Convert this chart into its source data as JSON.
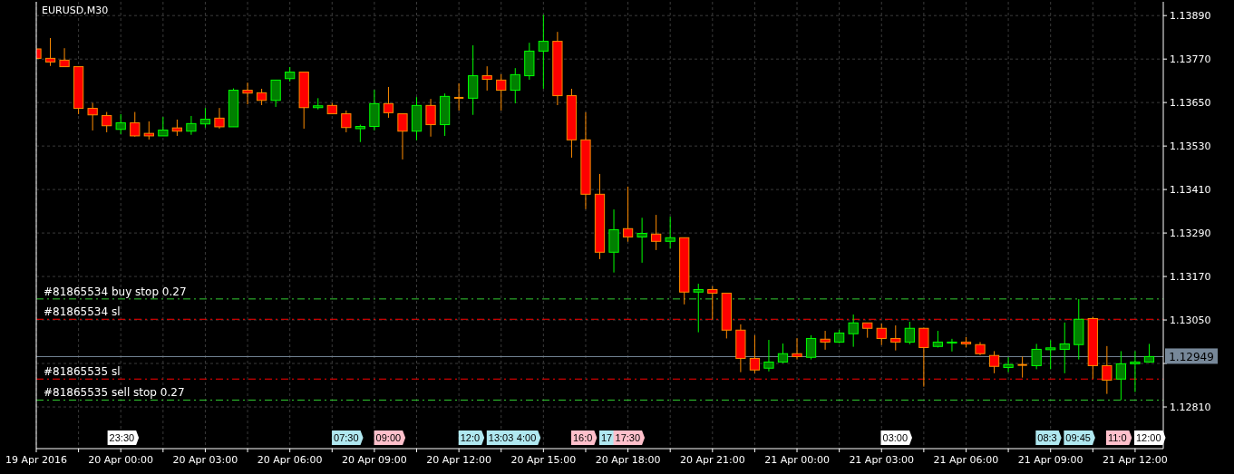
{
  "chart_data": {
    "type": "candlestick",
    "title": "EURUSD,M30",
    "x": [
      "2016-04-19T21:00",
      "2016-04-19T21:30",
      "2016-04-19T22:00",
      "2016-04-19T22:30",
      "2016-04-19T23:00",
      "2016-04-19T23:30",
      "2016-04-20T00:00",
      "2016-04-20T00:30",
      "2016-04-20T01:00",
      "2016-04-20T01:30",
      "2016-04-20T02:00",
      "2016-04-20T02:30",
      "2016-04-20T03:00",
      "2016-04-20T03:30",
      "2016-04-20T04:00",
      "2016-04-20T04:30",
      "2016-04-20T05:00",
      "2016-04-20T05:30",
      "2016-04-20T06:00",
      "2016-04-20T06:30",
      "2016-04-20T07:00",
      "2016-04-20T07:30",
      "2016-04-20T08:00",
      "2016-04-20T08:30",
      "2016-04-20T09:00",
      "2016-04-20T09:30",
      "2016-04-20T10:00",
      "2016-04-20T10:30",
      "2016-04-20T11:00",
      "2016-04-20T11:30",
      "2016-04-20T12:00",
      "2016-04-20T12:30",
      "2016-04-20T13:00",
      "2016-04-20T13:30",
      "2016-04-20T14:00",
      "2016-04-20T14:30",
      "2016-04-20T15:00",
      "2016-04-20T15:30",
      "2016-04-20T16:00",
      "2016-04-20T16:30",
      "2016-04-20T17:00",
      "2016-04-20T17:30",
      "2016-04-20T18:00",
      "2016-04-20T18:30",
      "2016-04-20T19:00",
      "2016-04-20T19:30",
      "2016-04-20T20:00",
      "2016-04-20T20:30",
      "2016-04-20T21:00",
      "2016-04-20T21:30",
      "2016-04-20T22:00",
      "2016-04-20T22:30",
      "2016-04-20T23:00",
      "2016-04-20T23:30",
      "2016-04-21T00:00",
      "2016-04-21T00:30",
      "2016-04-21T01:00",
      "2016-04-21T01:30",
      "2016-04-21T02:00",
      "2016-04-21T02:30",
      "2016-04-21T03:00",
      "2016-04-21T03:30",
      "2016-04-21T04:00",
      "2016-04-21T04:30",
      "2016-04-21T05:00",
      "2016-04-21T05:30",
      "2016-04-21T06:00",
      "2016-04-21T06:30",
      "2016-04-21T07:00",
      "2016-04-21T07:30",
      "2016-04-21T08:00",
      "2016-04-21T08:30",
      "2016-04-21T09:00",
      "2016-04-21T09:30",
      "2016-04-21T10:00",
      "2016-04-21T10:30",
      "2016-04-21T11:00",
      "2016-04-21T11:30",
      "2016-04-21T12:00",
      "2016-04-21T12:30"
    ],
    "ohlc": [
      [
        1.13798,
        1.13798,
        1.13772,
        1.13772
      ],
      [
        1.13772,
        1.13828,
        1.13751,
        1.13762
      ],
      [
        1.13767,
        1.138,
        1.13749,
        1.13749
      ],
      [
        1.13749,
        1.13749,
        1.13618,
        1.13634
      ],
      [
        1.13634,
        1.13649,
        1.13573,
        1.13616
      ],
      [
        1.13614,
        1.13624,
        1.13568,
        1.13586
      ],
      [
        1.13576,
        1.13618,
        1.13563,
        1.13594
      ],
      [
        1.13594,
        1.13624,
        1.13556,
        1.13558
      ],
      [
        1.13565,
        1.13598,
        1.13548,
        1.13558
      ],
      [
        1.13558,
        1.1361,
        1.13558,
        1.13574
      ],
      [
        1.1358,
        1.13603,
        1.13558,
        1.13571
      ],
      [
        1.13571,
        1.13613,
        1.13561,
        1.13592
      ],
      [
        1.13591,
        1.13635,
        1.13581,
        1.13604
      ],
      [
        1.13607,
        1.13635,
        1.13578,
        1.13583
      ],
      [
        1.13583,
        1.13689,
        1.13583,
        1.13684
      ],
      [
        1.13684,
        1.13705,
        1.13645,
        1.13676
      ],
      [
        1.13677,
        1.13688,
        1.13643,
        1.13656
      ],
      [
        1.13656,
        1.13712,
        1.13638,
        1.13712
      ],
      [
        1.13716,
        1.13748,
        1.13708,
        1.13734
      ],
      [
        1.13734,
        1.13734,
        1.13578,
        1.13636
      ],
      [
        1.13636,
        1.13662,
        1.13631,
        1.13641
      ],
      [
        1.13642,
        1.13649,
        1.13619,
        1.13619
      ],
      [
        1.13619,
        1.13628,
        1.13568,
        1.13581
      ],
      [
        1.13578,
        1.13589,
        1.13541,
        1.13584
      ],
      [
        1.13584,
        1.13685,
        1.13573,
        1.13647
      ],
      [
        1.13647,
        1.13693,
        1.13608,
        1.13622
      ],
      [
        1.13619,
        1.13619,
        1.13493,
        1.13571
      ],
      [
        1.13571,
        1.13665,
        1.13546,
        1.13642
      ],
      [
        1.13642,
        1.1366,
        1.13556,
        1.13589
      ],
      [
        1.13589,
        1.13675,
        1.13558,
        1.13667
      ],
      [
        1.13663,
        1.13703,
        1.13628,
        1.13663
      ],
      [
        1.13662,
        1.13808,
        1.13616,
        1.13724
      ],
      [
        1.13724,
        1.1375,
        1.13683,
        1.13714
      ],
      [
        1.13712,
        1.13728,
        1.13628,
        1.13684
      ],
      [
        1.13684,
        1.13745,
        1.13648,
        1.13727
      ],
      [
        1.13724,
        1.13815,
        1.13713,
        1.13792
      ],
      [
        1.13792,
        1.13892,
        1.13688,
        1.13819
      ],
      [
        1.13819,
        1.13845,
        1.13643,
        1.13669
      ],
      [
        1.13669,
        1.13688,
        1.13498,
        1.13547
      ],
      [
        1.13547,
        1.13623,
        1.13356,
        1.13397
      ],
      [
        1.13397,
        1.13453,
        1.13218,
        1.13237
      ],
      [
        1.13237,
        1.13355,
        1.13181,
        1.13299
      ],
      [
        1.13302,
        1.13418,
        1.13266,
        1.13279
      ],
      [
        1.13279,
        1.13332,
        1.13208,
        1.13289
      ],
      [
        1.13287,
        1.1334,
        1.13243,
        1.13267
      ],
      [
        1.13267,
        1.13335,
        1.13248,
        1.13277
      ],
      [
        1.13277,
        1.13277,
        1.13093,
        1.13127
      ],
      [
        1.13127,
        1.1315,
        1.13016,
        1.13134
      ],
      [
        1.13134,
        1.13143,
        1.13051,
        1.13124
      ],
      [
        1.13124,
        1.13124,
        1.12999,
        1.13022
      ],
      [
        1.13022,
        1.13038,
        1.12906,
        1.12944
      ],
      [
        1.12944,
        1.13008,
        1.12903,
        1.12912
      ],
      [
        1.12917,
        1.12995,
        1.12908,
        1.12934
      ],
      [
        1.12934,
        1.12985,
        1.12931,
        1.12957
      ],
      [
        1.12957,
        1.13,
        1.12941,
        1.12949
      ],
      [
        1.12947,
        1.13008,
        1.12941,
        1.12999
      ],
      [
        1.12997,
        1.1302,
        1.12968,
        1.12989
      ],
      [
        1.12989,
        1.13023,
        1.12986,
        1.13014
      ],
      [
        1.13012,
        1.13065,
        1.12976,
        1.13042
      ],
      [
        1.13042,
        1.13042,
        1.13001,
        1.13027
      ],
      [
        1.13027,
        1.1304,
        1.12981,
        1.12999
      ],
      [
        1.12999,
        1.13035,
        1.12966,
        1.12989
      ],
      [
        1.12989,
        1.13045,
        1.12983,
        1.13027
      ],
      [
        1.13027,
        1.13029,
        1.12866,
        1.12974
      ],
      [
        1.12977,
        1.1302,
        1.12974,
        1.12989
      ],
      [
        1.12988,
        1.12998,
        1.12963,
        1.12989
      ],
      [
        1.12989,
        1.13003,
        1.12974,
        1.12984
      ],
      [
        1.12982,
        1.12989,
        1.12953,
        1.12957
      ],
      [
        1.12952,
        1.12964,
        1.12903,
        1.12922
      ],
      [
        1.12919,
        1.12947,
        1.12906,
        1.12927
      ],
      [
        1.12926,
        1.12949,
        1.12891,
        1.12926
      ],
      [
        1.12924,
        1.12984,
        1.12914,
        1.12969
      ],
      [
        1.12968,
        1.12994,
        1.12914,
        1.12973
      ],
      [
        1.12969,
        1.13043,
        1.12903,
        1.12984
      ],
      [
        1.12982,
        1.13108,
        1.12941,
        1.13052
      ],
      [
        1.13054,
        1.13059,
        1.12888,
        1.12924
      ],
      [
        1.12924,
        1.12978,
        1.12846,
        1.12884
      ],
      [
        1.12887,
        1.12964,
        1.12829,
        1.12929
      ],
      [
        1.12929,
        1.12964,
        1.12851,
        1.12934
      ],
      [
        1.12934,
        1.12984,
        1.12932,
        1.12949
      ]
    ],
    "xlim": [
      "2016-04-19T21:00",
      "2016-04-21T13:00"
    ],
    "xticks": [
      {
        "value": "2016-04-19T21:00",
        "label": "19 Apr 2016"
      },
      {
        "value": "2016-04-19T22:30",
        "label": null
      },
      {
        "value": "2016-04-20T00:00",
        "label": "20 Apr 00:00"
      },
      {
        "value": "2016-04-20T01:30",
        "label": null
      },
      {
        "value": "2016-04-20T03:00",
        "label": "20 Apr 03:00"
      },
      {
        "value": "2016-04-20T04:30",
        "label": null
      },
      {
        "value": "2016-04-20T06:00",
        "label": "20 Apr 06:00"
      },
      {
        "value": "2016-04-20T07:30",
        "label": null
      },
      {
        "value": "2016-04-20T09:00",
        "label": "20 Apr 09:00"
      },
      {
        "value": "2016-04-20T10:30",
        "label": null
      },
      {
        "value": "2016-04-20T12:00",
        "label": "20 Apr 12:00"
      },
      {
        "value": "2016-04-20T13:30",
        "label": null
      },
      {
        "value": "2016-04-20T15:00",
        "label": "20 Apr 15:00"
      },
      {
        "value": "2016-04-20T16:30",
        "label": null
      },
      {
        "value": "2016-04-20T18:00",
        "label": "20 Apr 18:00"
      },
      {
        "value": "2016-04-20T19:30",
        "label": null
      },
      {
        "value": "2016-04-20T21:00",
        "label": "20 Apr 21:00"
      },
      {
        "value": "2016-04-20T22:30",
        "label": null
      },
      {
        "value": "2016-04-21T00:00",
        "label": "21 Apr 00:00"
      },
      {
        "value": "2016-04-21T01:30",
        "label": null
      },
      {
        "value": "2016-04-21T03:00",
        "label": "21 Apr 03:00"
      },
      {
        "value": "2016-04-21T04:30",
        "label": null
      },
      {
        "value": "2016-04-21T06:00",
        "label": "21 Apr 06:00"
      },
      {
        "value": "2016-04-21T07:30",
        "label": null
      },
      {
        "value": "2016-04-21T09:00",
        "label": "21 Apr 09:00"
      },
      {
        "value": "2016-04-21T10:30",
        "label": null
      },
      {
        "value": "2016-04-21T12:00",
        "label": "21 Apr 12:00"
      }
    ],
    "ylim": [
      1.12695,
      1.13928
    ],
    "yticks": [
      {
        "value": 1.1281,
        "label": "1.12810"
      },
      {
        "value": 1.1293,
        "label": null
      },
      {
        "value": 1.1305,
        "label": "1.13050"
      },
      {
        "value": 1.1317,
        "label": "1.13170"
      },
      {
        "value": 1.1329,
        "label": "1.13290"
      },
      {
        "value": 1.1341,
        "label": "1.13410"
      },
      {
        "value": 1.1353,
        "label": "1.13530"
      },
      {
        "value": 1.1365,
        "label": "1.13650"
      },
      {
        "value": 1.1377,
        "label": "1.13770"
      },
      {
        "value": 1.1389,
        "label": "1.13890"
      }
    ],
    "grid": true,
    "ref_lines": [
      {
        "axis": "y",
        "value": 1.13108,
        "label": "#81865534 buy stop 0.27",
        "color": "#32cd32",
        "line_style": "dashed"
      },
      {
        "axis": "y",
        "value": 1.13052,
        "label": "#81865534 sl",
        "color": "#ff0000",
        "line_style": "dashed"
      },
      {
        "axis": "y",
        "value": 1.12887,
        "label": "#81865535 sl",
        "color": "#ff0000",
        "line_style": "dashed"
      },
      {
        "axis": "y",
        "value": 1.12829,
        "label": "#81865535 sell stop 0.27",
        "color": "#32cd32",
        "line_style": "dashed"
      },
      {
        "axis": "y",
        "value": 1.12949,
        "label": "1.12949",
        "color": "#778899",
        "line_style": "solid"
      }
    ],
    "annotations": [
      "23:30",
      "07:30",
      "09:00",
      "12:0",
      "13:03",
      "4:00",
      "16:0",
      "17",
      "17:30",
      "03:00",
      "08:3",
      "09:45",
      "11:0",
      "12:00"
    ]
  }
}
